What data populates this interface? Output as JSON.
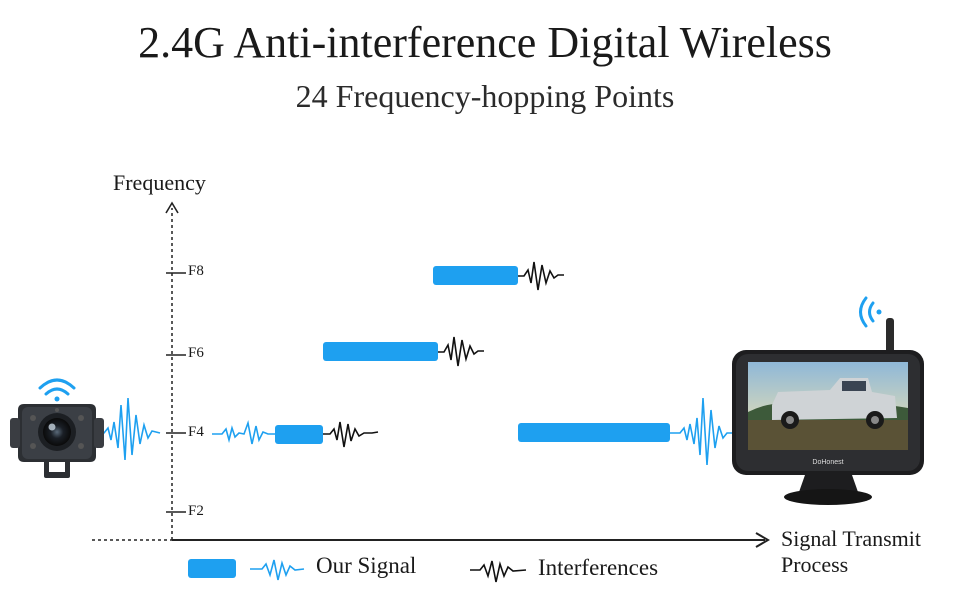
{
  "header": {
    "title": "2.4G Anti-interference Digital Wireless",
    "subtitle": "24 Frequency-hopping Points"
  },
  "axes": {
    "y_label": "Frequency",
    "x_label_line1": "Signal Transmit",
    "x_label_line2": "Process",
    "ticks": [
      "F8",
      "F6",
      "F4",
      "F2"
    ]
  },
  "legend": {
    "our_signal": "Our Signal",
    "interferences": "Interferences"
  },
  "devices": {
    "monitor_brand": "DoHonest",
    "camera": "camera-icon",
    "monitor": "monitor-icon"
  },
  "colors": {
    "signal": "#1ea0f0",
    "interference": "#111111",
    "axis": "#222222"
  }
}
